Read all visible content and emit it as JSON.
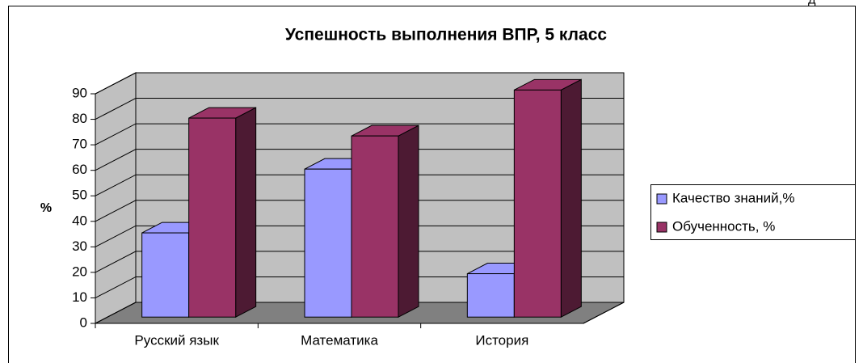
{
  "corner_text": "Д",
  "chart_data": {
    "type": "bar3d",
    "title": "Успешность выполнения ВПР, 5 класс",
    "ylabel": "%",
    "categories": [
      "Русский язык",
      "Математика",
      "История"
    ],
    "series": [
      {
        "name": "Качество знаний,%",
        "color": "#9999ff",
        "side_color": "#5c5ca8",
        "values": [
          33,
          58,
          17
        ]
      },
      {
        "name": "Обученность, %",
        "color": "#993366",
        "side_color": "#4d1a33",
        "values": [
          78,
          71,
          89
        ]
      }
    ],
    "ylim": [
      0,
      90
    ],
    "yticks": [
      0,
      10,
      20,
      30,
      40,
      50,
      60,
      70,
      80,
      90
    ],
    "grid": true,
    "wall_color": "#c0c0c0",
    "floor_color": "#808080",
    "legend": "right"
  }
}
